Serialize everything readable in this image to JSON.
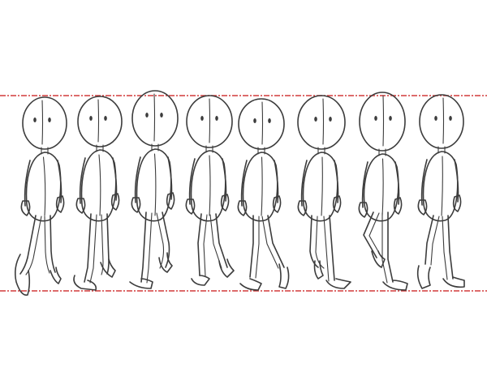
{
  "colors": {
    "background": "#ffffff",
    "pencil": "#3c3c3c",
    "guide_line": "#d23a3a"
  },
  "guide_lines": [
    "top-height-guide",
    "ground-guide"
  ],
  "figures": [
    {
      "frame": 1,
      "pose": "left-foot-forward-contact"
    },
    {
      "frame": 2,
      "pose": "down"
    },
    {
      "frame": 3,
      "pose": "passing"
    },
    {
      "frame": 4,
      "pose": "up"
    },
    {
      "frame": 5,
      "pose": "right-foot-forward-contact"
    },
    {
      "frame": 6,
      "pose": "down"
    },
    {
      "frame": 7,
      "pose": "passing"
    },
    {
      "frame": 8,
      "pose": "up"
    }
  ]
}
